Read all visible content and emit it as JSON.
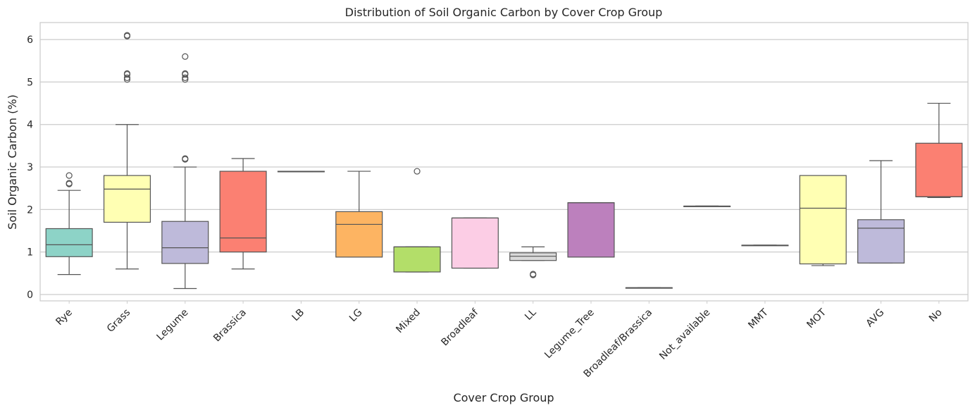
{
  "chart_data": {
    "type": "box",
    "title": "Distribution of Soil Organic Carbon by Cover Crop Group",
    "xlabel": "Cover Crop Group",
    "ylabel": "Soil Organic Carbon (%)",
    "ylim": [
      -0.15,
      6.4
    ],
    "yticks": [
      "0",
      "1",
      "2",
      "3",
      "4",
      "5",
      "6"
    ],
    "grid": "horizontal",
    "categories": [
      "Rye",
      "Grass",
      "Legume",
      "Brassica",
      "LB",
      "LG",
      "Mixed",
      "Broadleaf",
      "LL",
      "Legume_Tree",
      "Broadleaf/Brassica",
      "Not_available",
      "MMT",
      "MOT",
      "AVG",
      "No"
    ],
    "colors": [
      "#8dd3c7",
      "#ffffb3",
      "#bebada",
      "#fb8072",
      "#80b1d3",
      "#fdb462",
      "#b3de69",
      "#fccde5",
      "#d9d9d9",
      "#bc80bd",
      "#ccebc5",
      "#ffed6f",
      "#8dd3c7",
      "#ffffb3",
      "#bebada",
      "#fb8072"
    ],
    "boxes": [
      {
        "category": "Rye",
        "whisker_low": 0.47,
        "q1": 0.89,
        "median": 1.17,
        "q3": 1.55,
        "whisker_high": 2.45,
        "outliers": [
          2.6,
          2.62,
          2.8
        ]
      },
      {
        "category": "Grass",
        "whisker_low": 0.6,
        "q1": 1.7,
        "median": 2.48,
        "q3": 2.8,
        "whisker_high": 4.0,
        "outliers": [
          5.06,
          5.1,
          5.18,
          5.2,
          6.08,
          6.1
        ]
      },
      {
        "category": "Legume",
        "whisker_low": 0.14,
        "q1": 0.73,
        "median": 1.1,
        "q3": 1.72,
        "whisker_high": 3.0,
        "outliers": [
          3.18,
          3.2,
          5.06,
          5.1,
          5.18,
          5.2,
          5.6
        ]
      },
      {
        "category": "Brassica",
        "whisker_low": 0.6,
        "q1": 1.0,
        "median": 1.33,
        "q3": 2.9,
        "whisker_high": 3.2,
        "outliers": []
      },
      {
        "category": "LB",
        "whisker_low": 2.89,
        "q1": 2.89,
        "median": 2.89,
        "q3": 2.9,
        "whisker_high": 2.9,
        "outliers": []
      },
      {
        "category": "LG",
        "whisker_low": 0.88,
        "q1": 0.88,
        "median": 1.65,
        "q3": 1.95,
        "whisker_high": 2.9,
        "outliers": []
      },
      {
        "category": "Mixed",
        "whisker_low": 0.53,
        "q1": 0.53,
        "median": 1.12,
        "q3": 1.12,
        "whisker_high": 1.12,
        "outliers": [
          2.9
        ]
      },
      {
        "category": "Broadleaf",
        "whisker_low": 0.62,
        "q1": 0.62,
        "median": 1.8,
        "q3": 1.8,
        "whisker_high": 1.8,
        "outliers": []
      },
      {
        "category": "LL",
        "whisker_low": 0.8,
        "q1": 0.8,
        "median": 0.9,
        "q3": 0.98,
        "whisker_high": 1.12,
        "outliers": [
          0.46,
          0.48
        ]
      },
      {
        "category": "Legume_Tree",
        "whisker_low": 0.88,
        "q1": 0.88,
        "median": 2.16,
        "q3": 2.16,
        "whisker_high": 2.16,
        "outliers": []
      },
      {
        "category": "Broadleaf/Brassica",
        "whisker_low": 0.16,
        "q1": 0.16,
        "median": 0.16,
        "q3": 0.16,
        "whisker_high": 0.16,
        "outliers": []
      },
      {
        "category": "Not_available",
        "whisker_low": 2.08,
        "q1": 2.08,
        "median": 2.08,
        "q3": 2.08,
        "whisker_high": 2.08,
        "outliers": []
      },
      {
        "category": "MMT",
        "whisker_low": 1.16,
        "q1": 1.16,
        "median": 1.16,
        "q3": 1.16,
        "whisker_high": 1.16,
        "outliers": []
      },
      {
        "category": "MOT",
        "whisker_low": 0.68,
        "q1": 0.72,
        "median": 2.03,
        "q3": 2.8,
        "whisker_high": 2.8,
        "outliers": []
      },
      {
        "category": "AVG",
        "whisker_low": 0.74,
        "q1": 0.74,
        "median": 1.56,
        "q3": 1.76,
        "whisker_high": 3.15,
        "outliers": []
      },
      {
        "category": "No",
        "whisker_low": 2.28,
        "q1": 2.3,
        "median": 2.3,
        "q3": 3.56,
        "whisker_high": 4.5,
        "outliers": []
      }
    ]
  }
}
